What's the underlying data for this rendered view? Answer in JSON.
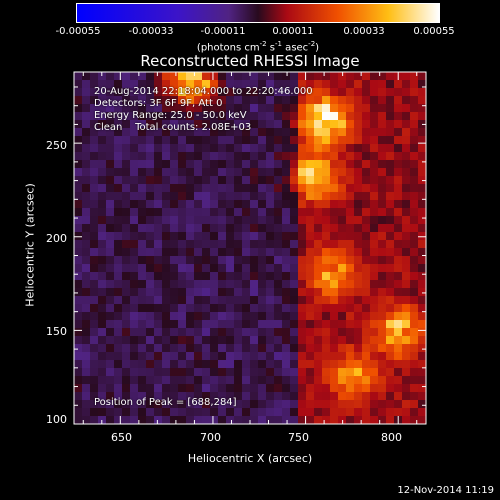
{
  "chart_data": {
    "type": "heatmap",
    "title": "Reconstructed RHESSI Image",
    "xlabel": "Heliocentric X (arcsec)",
    "ylabel": "Heliocentric Y (arcsec)",
    "xlim": [
      625,
      815
    ],
    "ylim": [
      100,
      288
    ],
    "xticks": [
      650,
      700,
      750,
      800
    ],
    "yticks": [
      100,
      150,
      200,
      250
    ],
    "colorbar": {
      "ticks": [
        "-0.00055",
        "-0.00033",
        "-0.00011",
        "0.00011",
        "0.00033",
        "0.00055"
      ],
      "range": [
        -0.00055,
        0.00055
      ],
      "unit_parts": [
        "(photons cm",
        "-2",
        " s",
        "-1",
        " asec",
        "-2",
        ")"
      ]
    },
    "annotations": [
      "20-Aug-2014 22:18:04.000 to 22:20:46.000",
      "Detectors: 3F 6F 9F, Att 0",
      "Energy Range: 25.0 - 50.0 keV",
      "Clean    Total counts: 2.08E+03"
    ],
    "peak_text": "Position of Peak = [688,284]",
    "peak": [
      688,
      284
    ],
    "bright_regions": [
      {
        "x": 688,
        "y": 284,
        "level": 0.00055
      },
      {
        "x": 760,
        "y": 262,
        "level": 0.0005
      },
      {
        "x": 755,
        "y": 232,
        "level": 0.0004
      },
      {
        "x": 765,
        "y": 180,
        "level": 0.0003
      },
      {
        "x": 800,
        "y": 150,
        "level": 0.00035
      },
      {
        "x": 775,
        "y": 125,
        "level": 0.0003
      }
    ]
  },
  "footer": {
    "timestamp": "12-Nov-2014 11:19"
  }
}
